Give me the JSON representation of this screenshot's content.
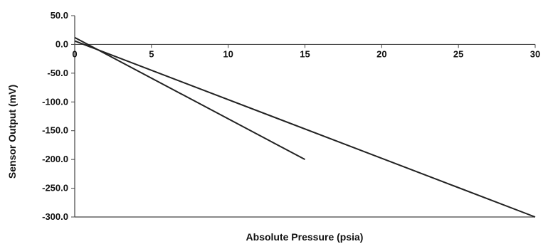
{
  "chart_data": {
    "type": "line",
    "title": "",
    "xlabel": "Absolute Pressure (psia)",
    "ylabel": "Sensor Output (mV)",
    "xlim": [
      0,
      30
    ],
    "ylim": [
      -300,
      50
    ],
    "x_ticks": [
      0,
      5,
      10,
      15,
      20,
      25,
      30
    ],
    "x_tick_labels": [
      "0",
      "5",
      "10",
      "15",
      "20",
      "25",
      "30"
    ],
    "y_ticks": [
      50,
      0,
      -50,
      -100,
      -150,
      -200,
      -250,
      -300
    ],
    "y_tick_labels": [
      "50.0",
      "0.0",
      "-50.0",
      "-100.0",
      "-150.0",
      "-200.0",
      "-250.0",
      "-300.0"
    ],
    "x_axis_position": "y=0",
    "grid": false,
    "legend": "none",
    "series": [
      {
        "x": [
          0,
          15
        ],
        "y": [
          12,
          -200
        ]
      },
      {
        "x": [
          0,
          30
        ],
        "y": [
          6,
          -300
        ]
      }
    ],
    "line_color": "#222222"
  }
}
